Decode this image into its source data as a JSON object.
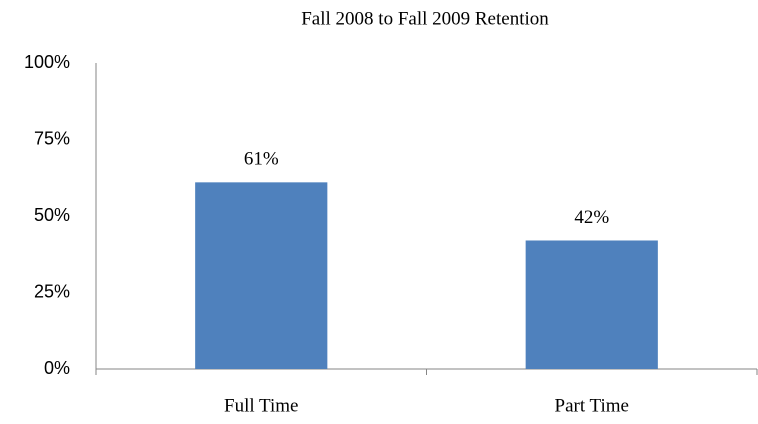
{
  "chart_data": {
    "type": "bar",
    "title": "Fall 2008 to Fall 2009 Retention",
    "categories": [
      "Full Time",
      "Part Time"
    ],
    "values": [
      61,
      42
    ],
    "value_labels": [
      "61%",
      "42%"
    ],
    "color": "#4f81bd",
    "ylim": [
      0,
      100
    ],
    "yticks": [
      {
        "value": 0,
        "label": "0%"
      },
      {
        "value": 25,
        "label": "25%"
      },
      {
        "value": 50,
        "label": "50%"
      },
      {
        "value": 75,
        "label": "75%"
      },
      {
        "value": 100,
        "label": "100%"
      }
    ],
    "grid": false
  }
}
